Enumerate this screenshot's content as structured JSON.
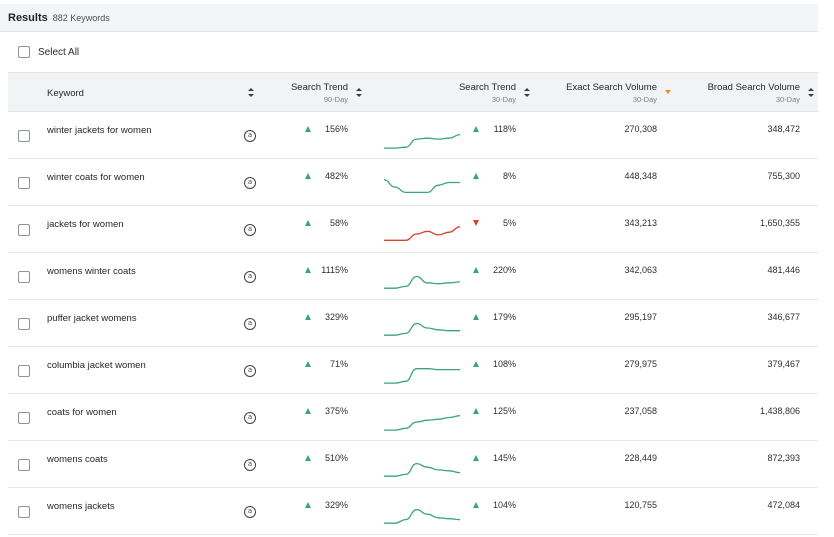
{
  "header": {
    "title": "Results",
    "count": "882 Keywords",
    "select_all": "Select All"
  },
  "columns": {
    "keyword": "Keyword",
    "trend90": {
      "label": "Search Trend",
      "sub": "90-Day"
    },
    "trend30": {
      "label": "Search Trend",
      "sub": "30-Day"
    },
    "exact": {
      "label": "Exact Search Volume",
      "sub": "30-Day"
    },
    "broad": {
      "label": "Broad Search Volume",
      "sub": "30-Day"
    }
  },
  "badge_glyph": "a",
  "colors": {
    "up": "#3aa57a",
    "down": "#d9412e",
    "sort_active": "#f08a24"
  },
  "rows": [
    {
      "keyword": "winter jackets for women",
      "trend90": "156%",
      "trend30": "118%",
      "trend30_dir": "up",
      "spark": [
        0.05,
        0.05,
        0.1,
        0.55,
        0.6,
        0.55,
        0.6,
        0.8
      ],
      "exact": "270,308",
      "broad": "348,472"
    },
    {
      "keyword": "winter coats for women",
      "trend90": "482%",
      "trend30": "8%",
      "trend30_dir": "up",
      "spark": [
        0.9,
        0.5,
        0.2,
        0.2,
        0.2,
        0.6,
        0.75,
        0.75
      ],
      "exact": "448,348",
      "broad": "755,300"
    },
    {
      "keyword": "jackets for women",
      "trend90": "58%",
      "trend30": "5%",
      "trend30_dir": "down",
      "spark": [
        0.15,
        0.15,
        0.15,
        0.5,
        0.65,
        0.45,
        0.6,
        0.9
      ],
      "exact": "343,213",
      "broad": "1,650,355"
    },
    {
      "keyword": "womens winter coats",
      "trend90": "1115%",
      "trend30": "220%",
      "trend30_dir": "up",
      "spark": [
        0.1,
        0.1,
        0.2,
        0.75,
        0.4,
        0.35,
        0.4,
        0.45
      ],
      "exact": "342,063",
      "broad": "481,446"
    },
    {
      "keyword": "puffer jacket womens",
      "trend90": "329%",
      "trend30": "179%",
      "trend30_dir": "up",
      "spark": [
        0.1,
        0.1,
        0.2,
        0.75,
        0.5,
        0.4,
        0.35,
        0.35
      ],
      "exact": "295,197",
      "broad": "346,677"
    },
    {
      "keyword": "columbia jacket women",
      "trend90": "71%",
      "trend30": "108%",
      "trend30_dir": "up",
      "spark": [
        0.05,
        0.05,
        0.15,
        0.85,
        0.85,
        0.8,
        0.8,
        0.8
      ],
      "exact": "279,975",
      "broad": "379,467"
    },
    {
      "keyword": "coats for women",
      "trend90": "375%",
      "trend30": "125%",
      "trend30_dir": "up",
      "spark": [
        0.05,
        0.05,
        0.15,
        0.5,
        0.6,
        0.65,
        0.75,
        0.85
      ],
      "exact": "237,058",
      "broad": "1,438,806"
    },
    {
      "keyword": "womens coats",
      "trend90": "510%",
      "trend30": "145%",
      "trend30_dir": "up",
      "spark": [
        0.1,
        0.1,
        0.2,
        0.8,
        0.6,
        0.45,
        0.4,
        0.3
      ],
      "exact": "228,449",
      "broad": "872,393"
    },
    {
      "keyword": "womens jackets",
      "trend90": "329%",
      "trend30": "104%",
      "trend30_dir": "up",
      "spark": [
        0.1,
        0.1,
        0.3,
        0.85,
        0.6,
        0.4,
        0.35,
        0.3
      ],
      "exact": "120,755",
      "broad": "472,084"
    }
  ]
}
